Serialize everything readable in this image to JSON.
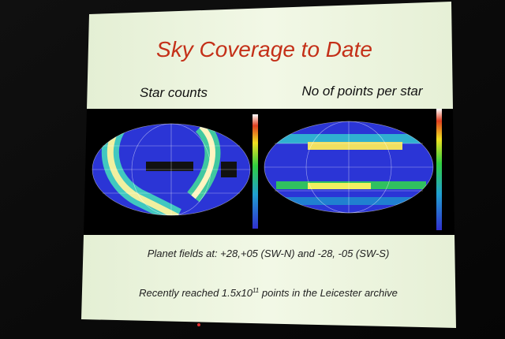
{
  "slide": {
    "title": "Sky Coverage to Date",
    "panels": [
      {
        "label": "Star counts"
      },
      {
        "label": "No of points per star"
      }
    ],
    "notes": [
      {
        "text": "Planet fields at:  +28,+05 (SW-N) and  -28, -05 (SW-S)"
      },
      {
        "before": "Recently reached 1.5x10",
        "superscript": "11",
        "after": " points in the Leicester archive"
      }
    ]
  }
}
